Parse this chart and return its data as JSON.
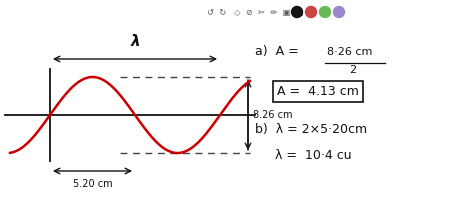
{
  "bg_color": "#ffffff",
  "wave_color": "#cc0000",
  "line_color": "#111111",
  "dashed_color": "#444444",
  "fig_w": 4.74,
  "fig_h": 2.1,
  "dpi": 100,
  "label_826": "8.26 cm",
  "label_520": "5.20 cm",
  "label_lambda": "λ",
  "text_a": "a)  A = ",
  "text_frac_num": "8·26 cm",
  "text_frac_den": "2",
  "text_boxed": "A =  4.13 cm",
  "text_b1": "b)  λ = 2×5·20cm",
  "text_b2": "λ = 10·4 cu",
  "toolbar_icons": [
    "↺",
    "↻",
    "↗",
    "Ø",
    "✂",
    "✏",
    "▣",
    "▤"
  ],
  "toolbar_circle_colors": [
    "#111111",
    "#cc4444",
    "#66bb55",
    "#9988cc"
  ]
}
